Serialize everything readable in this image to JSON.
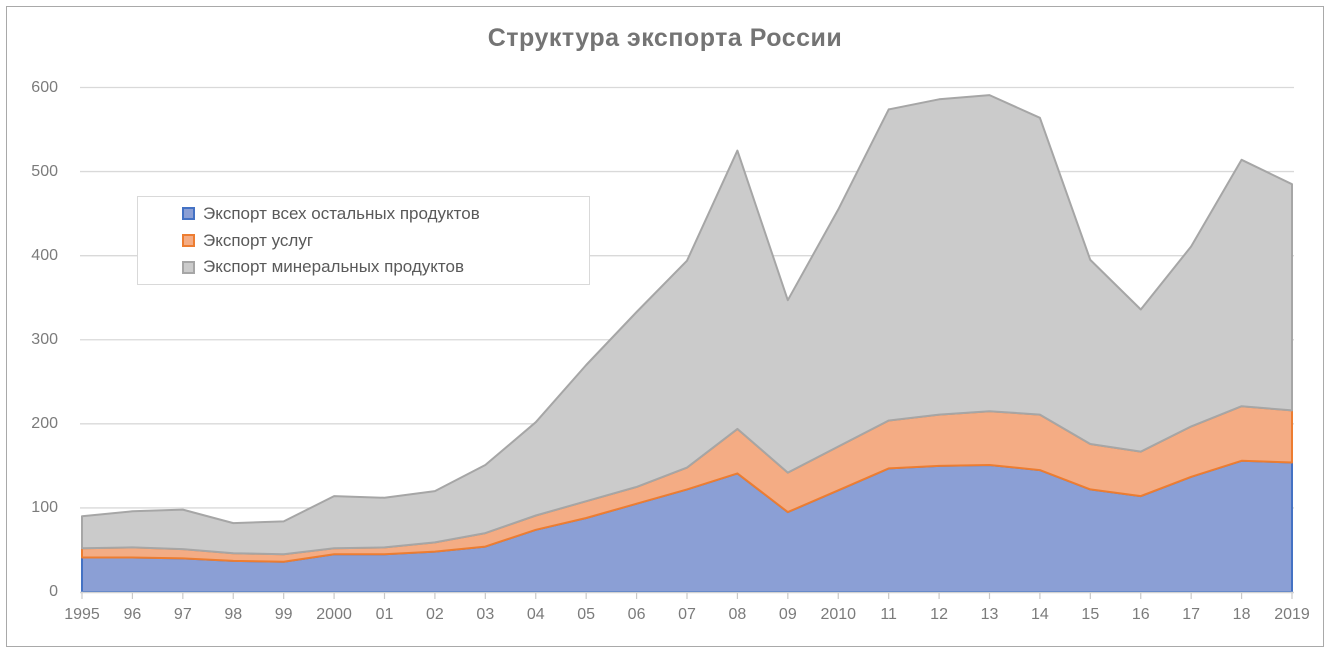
{
  "window": {
    "background": "#FFFFFF",
    "border_color": "#A9A9A9"
  },
  "title": {
    "text": "Структура экспорта России",
    "color": "#747474"
  },
  "legend": {
    "items": [
      {
        "label": "Экспорт всех остальных продуктов",
        "fill": "#8B9FD5",
        "stroke": "#4472C4"
      },
      {
        "label": "Экспорт услуг",
        "fill": "#F4AC84",
        "stroke": "#ED7D31"
      },
      {
        "label": "Экспорт минеральных продуктов",
        "fill": "#CBCBCB",
        "stroke": "#A6A6A6"
      }
    ]
  },
  "axes": {
    "y": {
      "ticks": [
        "0",
        "100",
        "200",
        "300",
        "400",
        "500",
        "600"
      ],
      "color": "#7B7B7B"
    },
    "x": {
      "labels": [
        "1995",
        "96",
        "97",
        "98",
        "99",
        "2000",
        "01",
        "02",
        "03",
        "04",
        "05",
        "06",
        "07",
        "08",
        "09",
        "2010",
        "11",
        "12",
        "13",
        "14",
        "15",
        "16",
        "17",
        "18",
        "2019"
      ],
      "color": "#7B7B7B"
    },
    "gridline_color": "#D9D9D9",
    "axis_line_color": "#D3D3D3",
    "tick_color": "#C9C9C9"
  },
  "chart_data": {
    "type": "area",
    "stacked": true,
    "title": "Структура экспорта России",
    "x": [
      1995,
      1996,
      1997,
      1998,
      1999,
      2000,
      2001,
      2002,
      2003,
      2004,
      2005,
      2006,
      2007,
      2008,
      2009,
      2010,
      2011,
      2012,
      2013,
      2014,
      2015,
      2016,
      2017,
      2018,
      2019
    ],
    "x_tick_labels": [
      "1995",
      "96",
      "97",
      "98",
      "99",
      "2000",
      "01",
      "02",
      "03",
      "04",
      "05",
      "06",
      "07",
      "08",
      "09",
      "2010",
      "11",
      "12",
      "13",
      "14",
      "15",
      "16",
      "17",
      "18",
      "2019"
    ],
    "series": [
      {
        "name": "Экспорт всех остальных продуктов",
        "fill": "#8B9FD5",
        "stroke": "#4472C4",
        "values": [
          41,
          41,
          40,
          37,
          36,
          45,
          45,
          48,
          54,
          74,
          88,
          105,
          122,
          141,
          95,
          121,
          147,
          150,
          151,
          145,
          122,
          114,
          137,
          156,
          154
        ]
      },
      {
        "name": "Экспорт услуг",
        "fill": "#F4AC84",
        "stroke": "#ED7D31",
        "values": [
          11,
          12,
          11,
          9,
          9,
          7,
          8,
          11,
          16,
          17,
          20,
          20,
          26,
          53,
          47,
          52,
          57,
          61,
          64,
          66,
          54,
          53,
          60,
          65,
          62
        ]
      },
      {
        "name": "Экспорт минеральных продуктов",
        "fill": "#CBCBCB",
        "stroke": "#A6A6A6",
        "values": [
          38,
          43,
          47,
          36,
          39,
          62,
          59,
          61,
          81,
          111,
          162,
          208,
          246,
          331,
          205,
          282,
          370,
          375,
          376,
          353,
          219,
          169,
          214,
          293,
          269
        ]
      }
    ],
    "stacked_totals": [
      90,
      96,
      98,
      82,
      84,
      114,
      112,
      120,
      151,
      202,
      270,
      333,
      394,
      525,
      347,
      455,
      574,
      586,
      591,
      564,
      395,
      336,
      411,
      514,
      485
    ],
    "ylim": [
      0,
      600
    ],
    "y_gridline_step": 100,
    "grid": true,
    "legend_position": "upper-left-inside"
  }
}
